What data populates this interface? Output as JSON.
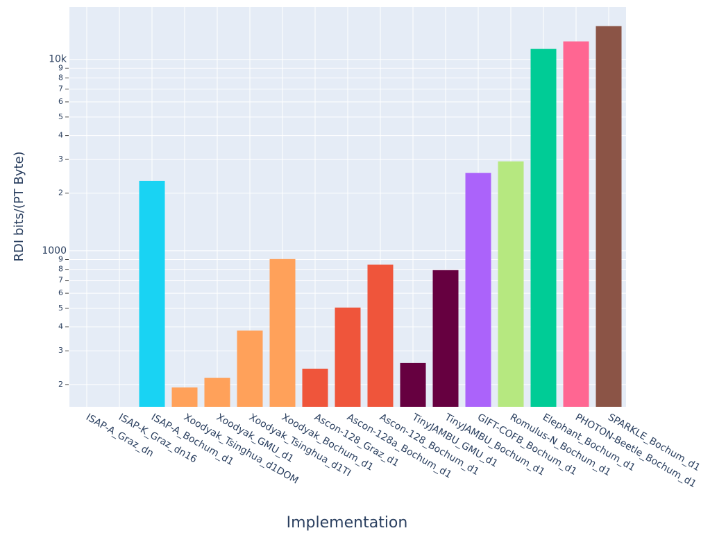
{
  "chart_data": {
    "type": "bar",
    "x_label": "Implementation",
    "y_label": "RDI bits/(PT Byte)",
    "log_y": true,
    "grid": true,
    "categories": [
      "ISAP-A_Graz_dn",
      "ISAP-K_Graz_dn16",
      "ISAP-A_Bochum_d1",
      "Xoodyak_Tsinghua_d1DOM",
      "Xoodyak_GMU_d1",
      "Xoodyak_Tsinghua_d1TI",
      "Xoodyak_Bochum_d1",
      "Ascon-128_Graz_d1",
      "Ascon-128a_Bochum_d1",
      "Ascon-128_Bochum_d1",
      "TinyJAMBU_GMU_d1",
      "TinyJAMBU_Bochum_d1",
      "GIFT-COFB_Bochum_d1",
      "Romulus-N_Bochum_d1",
      "Elephant_Bochum_d1",
      "PHOTON-Beetle_Bochum_d1",
      "SPARKLE_Bochum_d1"
    ],
    "values": [
      null,
      null,
      2320,
      193,
      217,
      383,
      905,
      242,
      505,
      847,
      259,
      792,
      2550,
      2930,
      11340,
      12420,
      14920
    ],
    "colors": [
      "#19d3f3",
      "#19d3f3",
      "#19d3f3",
      "#ffa15a",
      "#ffa15a",
      "#ffa15a",
      "#ffa15a",
      "#ef553b",
      "#ef553b",
      "#ef553b",
      "#660040",
      "#660040",
      "#ab63fa",
      "#b6e880",
      "#00cc96",
      "#ff6692",
      "#8b5446"
    ],
    "ylim": [
      153,
      18800
    ],
    "yticks": [
      {
        "value": 200,
        "label": "2"
      },
      {
        "value": 300,
        "label": "3"
      },
      {
        "value": 400,
        "label": "4"
      },
      {
        "value": 500,
        "label": "5"
      },
      {
        "value": 600,
        "label": "6"
      },
      {
        "value": 700,
        "label": "7"
      },
      {
        "value": 800,
        "label": "8"
      },
      {
        "value": 900,
        "label": "9"
      },
      1000,
      {
        "value": 2000,
        "label": "2"
      },
      {
        "value": 3000,
        "label": "3"
      },
      {
        "value": 4000,
        "label": "4"
      },
      {
        "value": 5000,
        "label": "5"
      },
      {
        "value": 6000,
        "label": "6"
      },
      {
        "value": 7000,
        "label": "7"
      },
      {
        "value": 8000,
        "label": "8"
      },
      {
        "value": 9000,
        "label": "9"
      },
      {
        "value": 10000,
        "label": "10k"
      }
    ]
  }
}
